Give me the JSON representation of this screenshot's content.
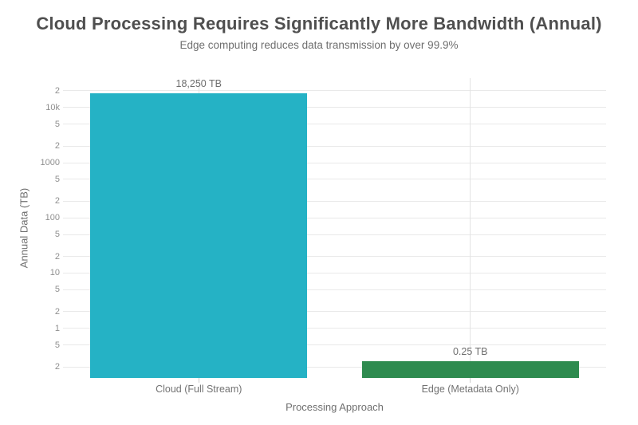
{
  "header": {
    "title": "Cloud Processing Requires Significantly More Bandwidth (Annual)",
    "subtitle": "Edge computing reduces data transmission by over 99.9%"
  },
  "chart_data": {
    "type": "bar",
    "title": "Cloud Processing Requires Significantly More Bandwidth (Annual)",
    "subtitle": "Edge computing reduces data transmission by over 99.9%",
    "xlabel": "Processing Approach",
    "ylabel": "Annual Data (TB)",
    "categories": [
      "Cloud (Full Stream)",
      "Edge (Metadata Only)"
    ],
    "values": [
      18250,
      0.25
    ],
    "value_labels": [
      "18,250 TB",
      "0.25 TB"
    ],
    "bar_colors": [
      "#25b2c5",
      "#2e8b4f"
    ],
    "yscale": "log",
    "ylim": [
      0.126,
      34000
    ],
    "grid": true,
    "legend": false,
    "yticks": [
      {
        "value": 20000,
        "label": "2"
      },
      {
        "value": 10000,
        "label": "10k"
      },
      {
        "value": 5000,
        "label": "5"
      },
      {
        "value": 2000,
        "label": "2"
      },
      {
        "value": 1000,
        "label": "1000"
      },
      {
        "value": 500,
        "label": "5"
      },
      {
        "value": 200,
        "label": "2"
      },
      {
        "value": 100,
        "label": "100"
      },
      {
        "value": 50,
        "label": "5"
      },
      {
        "value": 20,
        "label": "2"
      },
      {
        "value": 10,
        "label": "10"
      },
      {
        "value": 5,
        "label": "5"
      },
      {
        "value": 2,
        "label": "2"
      },
      {
        "value": 1,
        "label": "1"
      },
      {
        "value": 0.5,
        "label": "5"
      },
      {
        "value": 0.2,
        "label": "2"
      }
    ]
  },
  "colors": {
    "cloud_bar": "#25b2c5",
    "edge_bar": "#2e8b4f",
    "title_text": "#4f4f4f",
    "grid_line": "#e9e9e9",
    "background": "#ffffff"
  }
}
